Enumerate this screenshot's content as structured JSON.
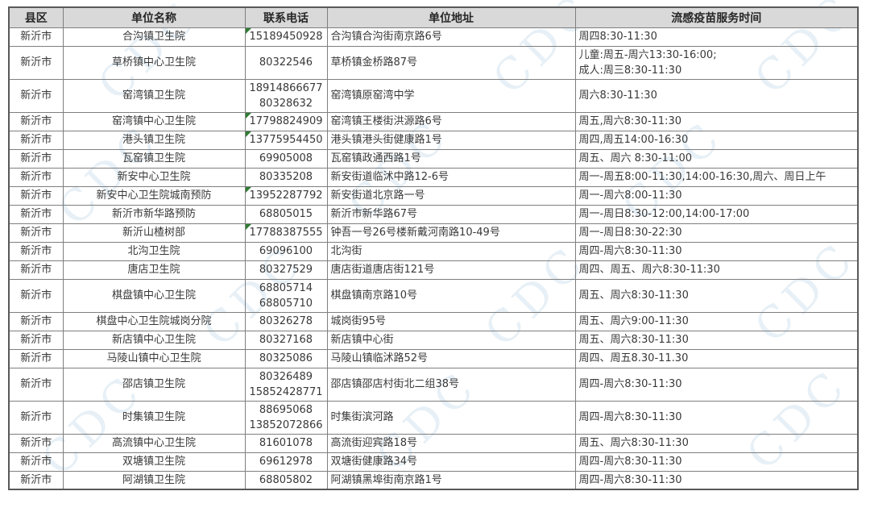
{
  "table": {
    "headers": [
      "县区",
      "单位名称",
      "联系电话",
      "单位地址",
      "流感疫苗服务时间"
    ],
    "rows": [
      {
        "county": "新沂市",
        "name": "合沟镇卫生院",
        "phone": [
          "15189450928"
        ],
        "address": "合沟镇合沟街南京路6号",
        "time": [
          "周四8:30-11:30"
        ],
        "green_flag": true
      },
      {
        "county": "新沂市",
        "name": "草桥镇中心卫生院",
        "phone": [
          "80322546"
        ],
        "address": "草桥镇金桥路87号",
        "time": [
          "儿童:周五-周六13:30-16:00;",
          "成人:周三8:30-11:30"
        ],
        "green_flag": false
      },
      {
        "county": "新沂市",
        "name": "窑湾镇卫生院",
        "phone": [
          "18914866677",
          "80328632"
        ],
        "address": "窑湾镇原窑湾中学",
        "time": [
          "周六8:30-11:30"
        ],
        "green_flag": false
      },
      {
        "county": "新沂市",
        "name": "窑湾镇中心卫生院",
        "phone": [
          "17798824909"
        ],
        "address": "窑湾镇王楼街洪源路6号",
        "time": [
          "周五,周六8:30-11:30"
        ],
        "green_flag": true
      },
      {
        "county": "新沂市",
        "name": "港头镇卫生院",
        "phone": [
          "13775954450"
        ],
        "address": "港头镇港头街健康路1号",
        "time": [
          "周四,周五14:00-16:30"
        ],
        "green_flag": true
      },
      {
        "county": "新沂市",
        "name": "瓦窑镇卫生院",
        "phone": [
          "69905008"
        ],
        "address": "瓦窑镇政通西路1号",
        "time": [
          "周五、周六 8:30-11:00"
        ],
        "green_flag": false
      },
      {
        "county": "新沂市",
        "name": "新安中心卫生院",
        "phone": [
          "80335208"
        ],
        "address": "新安街道临沭中路12-6号",
        "time": [
          "周一-周五8:00-11:30,14:00-16:30,周六、周日上午"
        ],
        "green_flag": false
      },
      {
        "county": "新沂市",
        "name": "新安中心卫生院城南预防",
        "phone": [
          "13952287792"
        ],
        "address": "新安街道北京路一号",
        "time": [
          "周一-周六8:00-11:30"
        ],
        "green_flag": true
      },
      {
        "county": "新沂市",
        "name": "新沂市新华路预防",
        "phone": [
          "68805015"
        ],
        "address": "新沂市新华路67号",
        "time": [
          "周一-周日8:30-12:00,14:00-17:00"
        ],
        "green_flag": false
      },
      {
        "county": "新沂市",
        "name": "新沂山楂树部",
        "phone": [
          "17788387555"
        ],
        "address": "钟吾一号26号楼新戴河南路10-49号",
        "time": [
          "周一-周日8:30-22:30"
        ],
        "green_flag": true
      },
      {
        "county": "新沂市",
        "name": "北沟卫生院",
        "phone": [
          "69096100"
        ],
        "address": "北沟街",
        "time": [
          "周四-周六8:30-11:30"
        ],
        "green_flag": false
      },
      {
        "county": "新沂市",
        "name": "唐店卫生院",
        "phone": [
          "80327529"
        ],
        "address": "唐店街道唐店街121号",
        "time": [
          "周四、周五、周六8:30-11:30"
        ],
        "green_flag": false
      },
      {
        "county": "新沂市",
        "name": "棋盘镇中心卫生院",
        "phone": [
          "68805714",
          "68805710"
        ],
        "address": "棋盘镇南京路10号",
        "time": [
          "周五、周六8:30-11:30"
        ],
        "green_flag": false
      },
      {
        "county": "新沂市",
        "name": "棋盘中心卫生院城岗分院",
        "phone": [
          "80326278"
        ],
        "address": "城岗街95号",
        "time": [
          "周五、周六9:00-11:30"
        ],
        "green_flag": false
      },
      {
        "county": "新沂市",
        "name": "新店镇中心卫生院",
        "phone": [
          "80327168"
        ],
        "address": "新店镇中心街",
        "time": [
          "周五、周六8:30-11:30"
        ],
        "green_flag": false
      },
      {
        "county": "新沂市",
        "name": "马陵山镇中心卫生院",
        "phone": [
          "80325086"
        ],
        "address": "马陵山镇临沭路52号",
        "time": [
          "周四、周五8.30-11.30"
        ],
        "green_flag": false
      },
      {
        "county": "新沂市",
        "name": "邵店镇卫生院",
        "phone": [
          "80326489",
          "15852428771"
        ],
        "address": "邵店镇邵店村街北二组38号",
        "time": [
          "周四-周六8:30-11:30"
        ],
        "green_flag": false
      },
      {
        "county": "新沂市",
        "name": "时集镇卫生院",
        "phone": [
          "88695068",
          "13852072866"
        ],
        "address": "时集街滨河路",
        "time": [
          "周四-周六8:30-11:30"
        ],
        "green_flag": false
      },
      {
        "county": "新沂市",
        "name": "高流镇中心卫生院",
        "phone": [
          "81601078"
        ],
        "address": "高流街迎宾路18号",
        "time": [
          "周五、周六8:30-11:30"
        ],
        "green_flag": false
      },
      {
        "county": "新沂市",
        "name": "双塘镇卫生院",
        "phone": [
          "69612978"
        ],
        "address": "双塘街健康路34号",
        "time": [
          "周四-周六8:30-11:30"
        ],
        "green_flag": false
      },
      {
        "county": "新沂市",
        "name": "阿湖镇卫生院",
        "phone": [
          "68805802"
        ],
        "address": "阿湖镇黑埠街南京路1号",
        "time": [
          "周四-周六8:30-11:30"
        ],
        "green_flag": false
      }
    ]
  },
  "watermark": {
    "text": "CDC",
    "color": "#6fa8cc"
  },
  "colors": {
    "header_bg": "#d9d9d9",
    "grid_border": "#7f7f7f",
    "outer_border": "#595959",
    "text": "#383838",
    "flag_green": "#2f7d32"
  }
}
